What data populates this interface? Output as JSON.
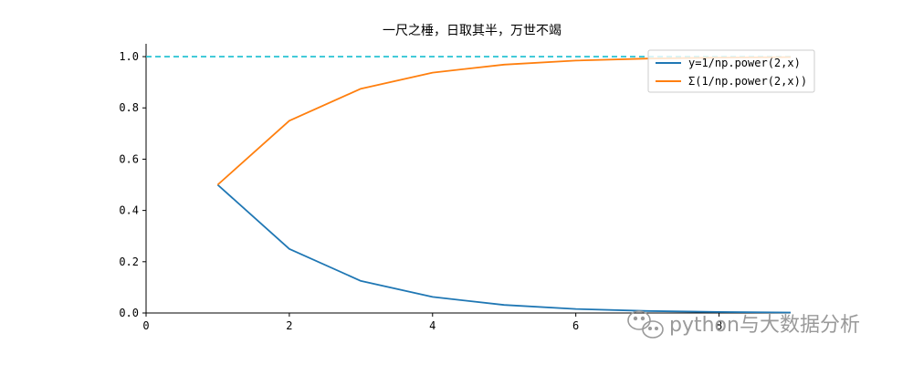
{
  "chart_data": {
    "type": "line",
    "title": "一尺之棰，日取其半，万世不竭",
    "xlabel": "",
    "ylabel": "",
    "xlim": [
      0,
      9.0
    ],
    "ylim": [
      0,
      1.05
    ],
    "xticks": [
      0,
      2,
      4,
      6,
      8
    ],
    "yticks": [
      0.0,
      0.2,
      0.4,
      0.6,
      0.8,
      1.0
    ],
    "xtick_labels": [
      "0",
      "2",
      "4",
      "6",
      "8"
    ],
    "ytick_labels": [
      "0.0",
      "0.2",
      "0.4",
      "0.6",
      "0.8",
      "1.0"
    ],
    "x": [
      1,
      2,
      3,
      4,
      5,
      6,
      7,
      8,
      9
    ],
    "series": [
      {
        "name": "y=1/np.power(2,x)",
        "color": "#1f77b4",
        "values": [
          0.5,
          0.25,
          0.125,
          0.0625,
          0.03125,
          0.015625,
          0.0078125,
          0.00390625,
          0.001953125
        ]
      },
      {
        "name": "Σ(1/np.power(2,x))",
        "color": "#ff7f0e",
        "values": [
          0.5,
          0.75,
          0.875,
          0.9375,
          0.96875,
          0.984375,
          0.9921875,
          0.99609375,
          0.998046875
        ]
      }
    ],
    "reference_line": {
      "y": 1.0,
      "color": "#17becf",
      "style": "dashed"
    },
    "grid": false,
    "legend_position": "top-right"
  },
  "watermark": {
    "text": "python与大数据分析",
    "icon": "wechat-icon"
  }
}
